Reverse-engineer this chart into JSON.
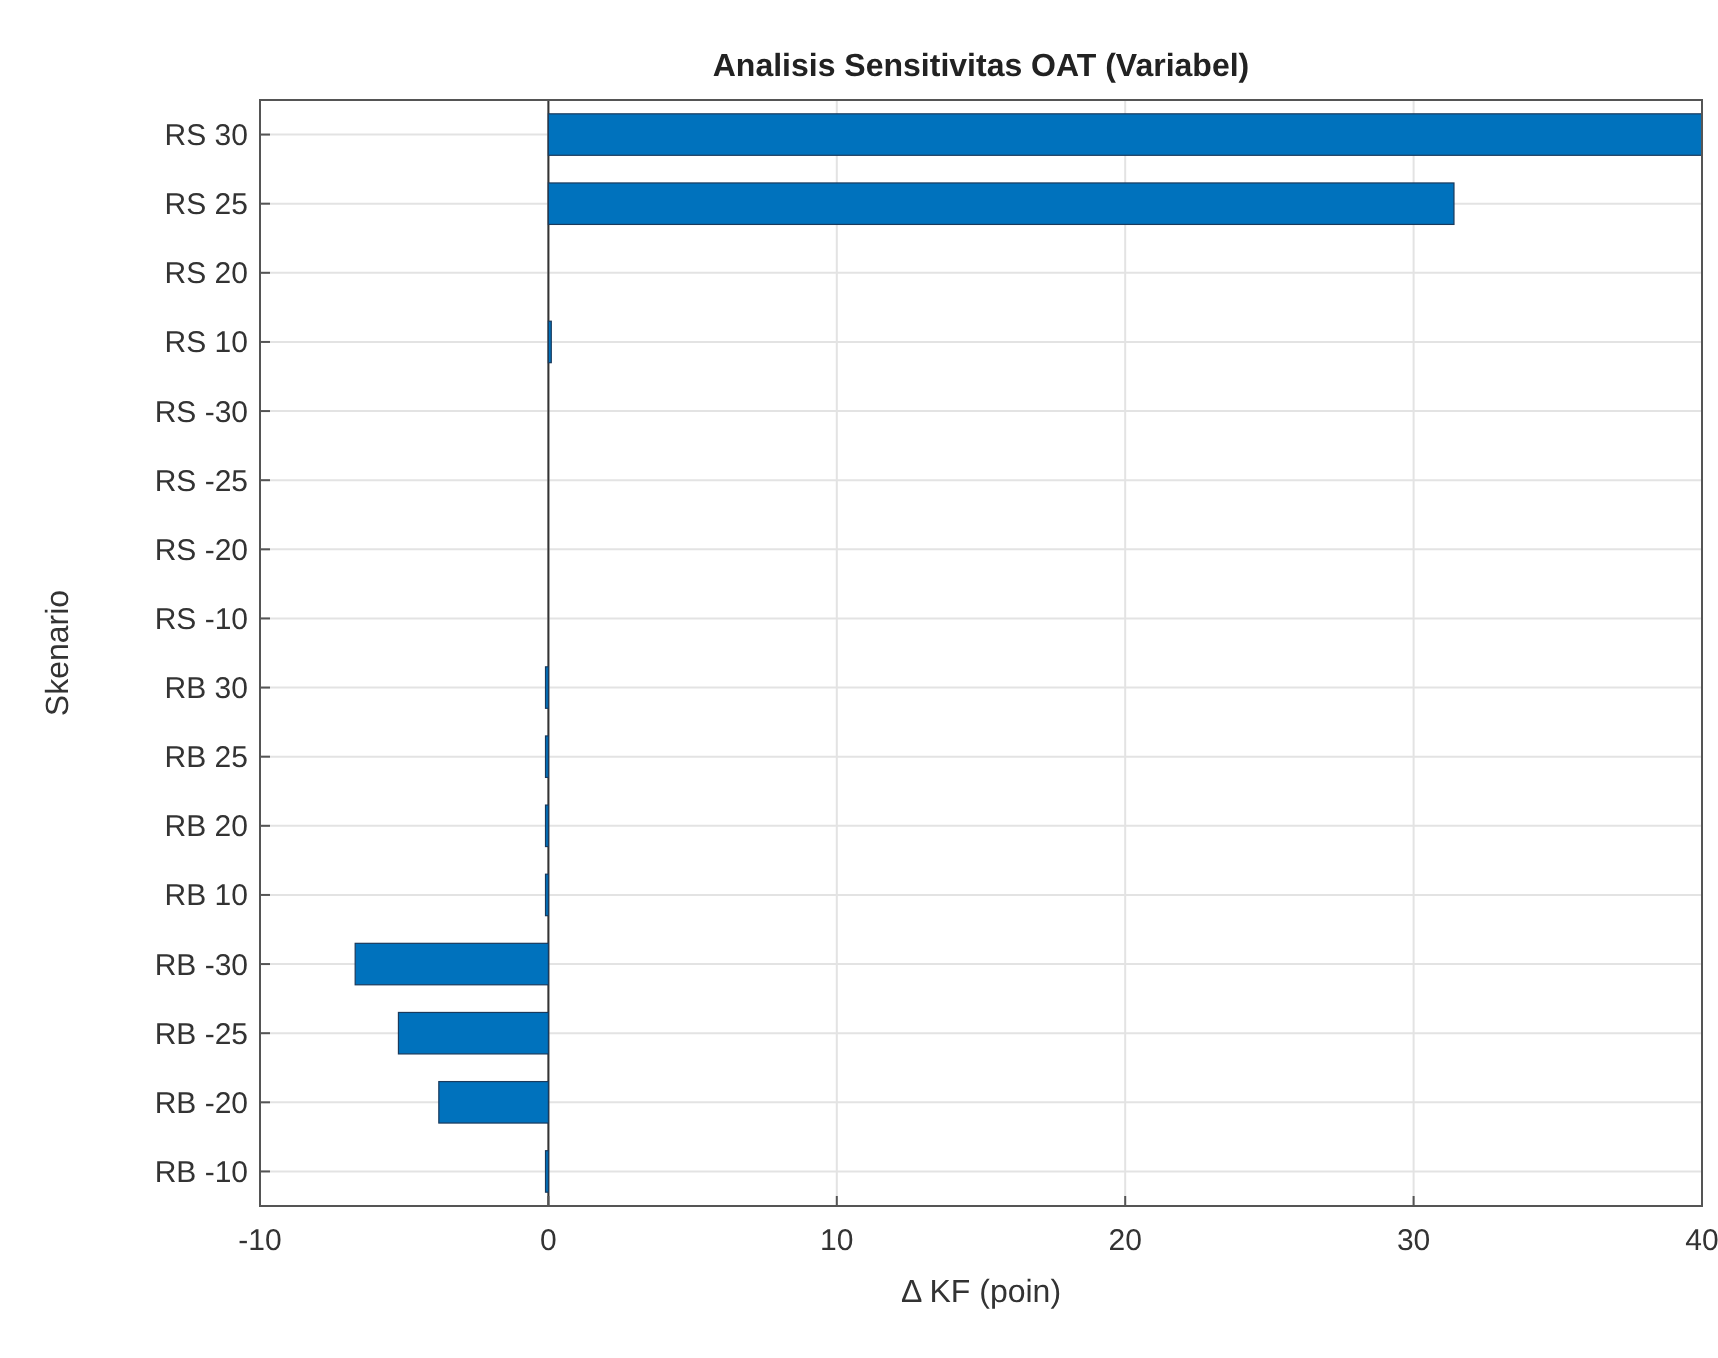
{
  "chart_data": {
    "type": "bar",
    "orientation": "horizontal",
    "title": "Analisis Sensitivitas OAT (Variabel)",
    "xlabel": "Δ KF (poin)",
    "ylabel": "Skenario",
    "categories": [
      "RS 30",
      "RS 25",
      "RS 20",
      "RS 10",
      "RS -30",
      "RS -25",
      "RS -20",
      "RS -10",
      "RB 30",
      "RB 25",
      "RB 20",
      "RB 10",
      "RB -30",
      "RB -25",
      "RB -20",
      "RB -10"
    ],
    "values": [
      40,
      31.4,
      0,
      0.1,
      0,
      0,
      0,
      0,
      -0.1,
      -0.1,
      -0.1,
      -0.1,
      -6.7,
      -5.2,
      -3.8,
      -0.1
    ],
    "color": "#0072bd",
    "xlim": [
      -10,
      40
    ],
    "xticks": [
      -10,
      0,
      10,
      20,
      30,
      40
    ],
    "grid": true
  }
}
